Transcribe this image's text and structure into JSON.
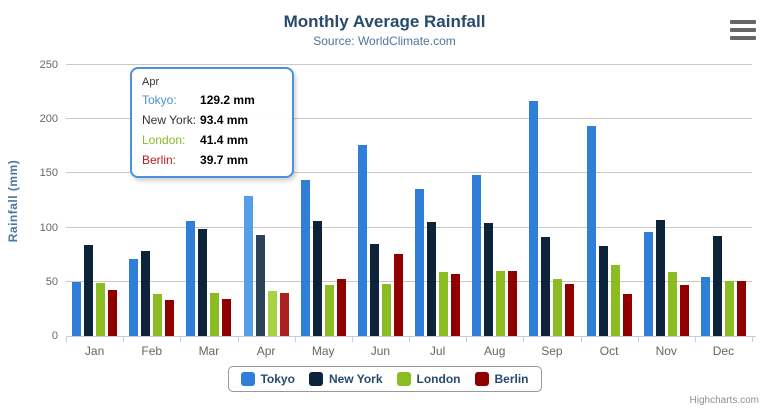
{
  "header": {
    "title": "Monthly Average Rainfall",
    "subtitle": "Source: WorldClimate.com"
  },
  "credits": "Highcharts.com",
  "chart_data": {
    "type": "bar",
    "title": "Monthly Average Rainfall",
    "subtitle": "Source: WorldClimate.com",
    "categories": [
      "Jan",
      "Feb",
      "Mar",
      "Apr",
      "May",
      "Jun",
      "Jul",
      "Aug",
      "Sep",
      "Oct",
      "Nov",
      "Dec"
    ],
    "series": [
      {
        "name": "Tokyo",
        "color": "#2f7ed8",
        "hover_color": "#559ee8",
        "values": [
          49.9,
          71.5,
          106.4,
          129.2,
          144.0,
          176.0,
          135.6,
          148.5,
          216.4,
          194.1,
          95.6,
          54.4
        ]
      },
      {
        "name": "New York",
        "color": "#0d233a",
        "hover_color": "#2c4257",
        "values": [
          83.6,
          78.8,
          98.5,
          93.4,
          106.0,
          84.5,
          105.0,
          104.3,
          91.2,
          83.5,
          106.6,
          92.3
        ]
      },
      {
        "name": "London",
        "color": "#8bbc21",
        "hover_color": "#a6d243",
        "values": [
          48.9,
          38.8,
          39.3,
          41.4,
          47.0,
          48.3,
          59.0,
          59.6,
          52.4,
          65.2,
          59.3,
          51.2
        ]
      },
      {
        "name": "Berlin",
        "color": "#910000",
        "hover_color": "#ac2020",
        "values": [
          42.4,
          33.2,
          34.5,
          39.7,
          52.6,
          75.5,
          57.4,
          60.4,
          47.6,
          39.1,
          46.8,
          51.1
        ]
      }
    ],
    "xlabel": "",
    "ylabel": "Rainfall (mm)",
    "ylim": [
      0,
      250
    ],
    "ytick_interval": 50,
    "grid": true,
    "legend_position": "bottom",
    "highlighted_category": "Apr"
  },
  "tooltip": {
    "header": "Apr",
    "rows": [
      {
        "name": "Tokyo:",
        "color": "#4892d0",
        "value": "129.2 mm"
      },
      {
        "name": "New York:",
        "color": "#333333",
        "value": "93.4 mm"
      },
      {
        "name": "London:",
        "color": "#8bbc21",
        "value": "41.4 mm"
      },
      {
        "name": "Berlin:",
        "color": "#b02020",
        "value": "39.7 mm"
      }
    ]
  }
}
